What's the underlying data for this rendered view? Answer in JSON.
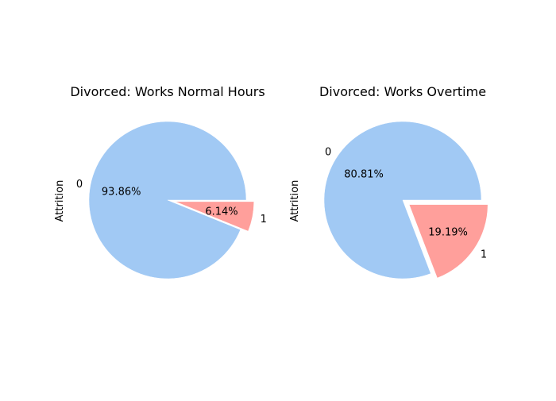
{
  "chart_data": [
    {
      "type": "pie",
      "title": "Divorced: Works Normal Hours",
      "ylabel": "Attrition",
      "slices": [
        {
          "label": "0",
          "value": 93.86,
          "pct_label": "93.86%",
          "exploded": false
        },
        {
          "label": "1",
          "value": 6.14,
          "pct_label": "6.14%",
          "exploded": true
        }
      ]
    },
    {
      "type": "pie",
      "title": "Divorced: Works Overtime",
      "ylabel": "Attrition",
      "slices": [
        {
          "label": "0",
          "value": 80.81,
          "pct_label": "80.81%",
          "exploded": false
        },
        {
          "label": "1",
          "value": 19.19,
          "pct_label": "19.19%",
          "exploded": true
        }
      ]
    }
  ],
  "colors": {
    "slice_0": "#a1c9f4",
    "slice_1": "#ff9f9b"
  }
}
